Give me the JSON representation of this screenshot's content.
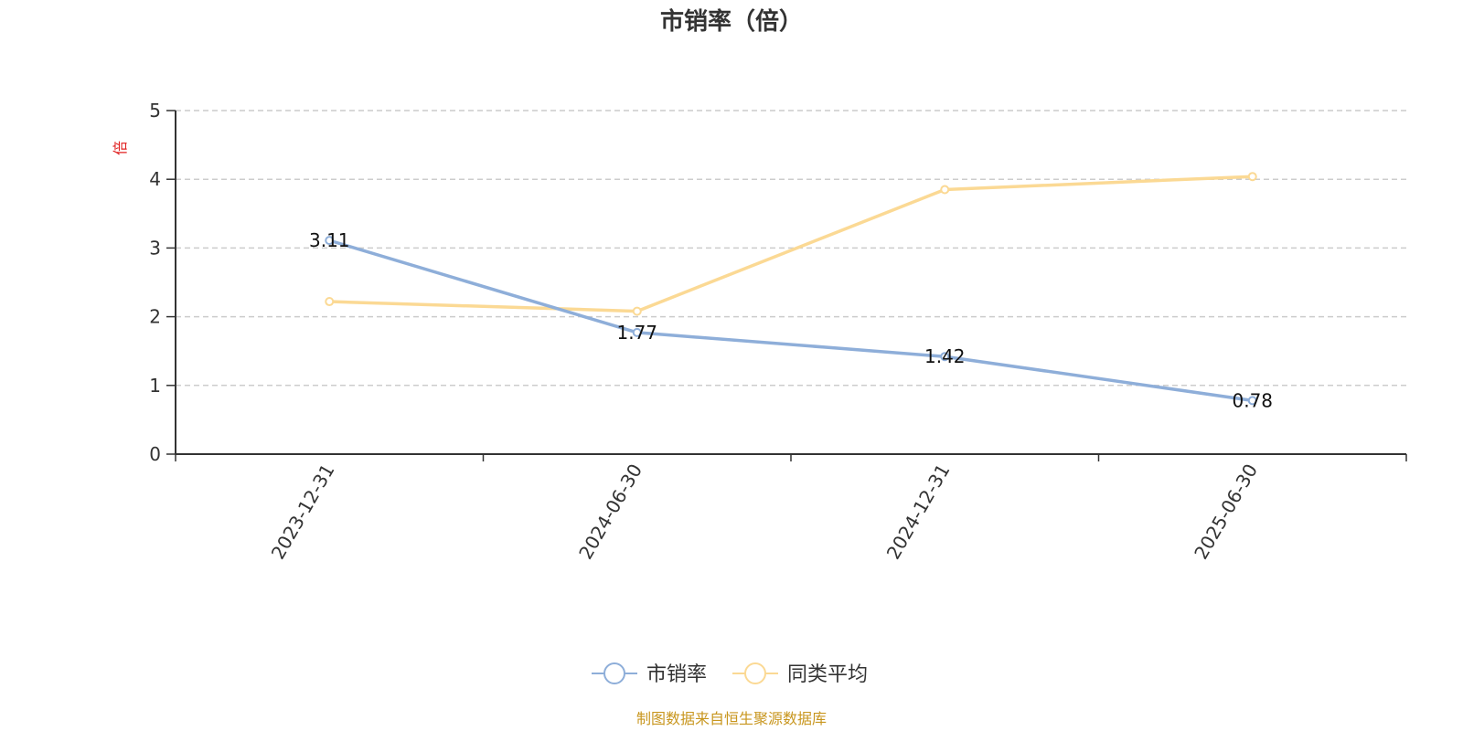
{
  "chart_data": {
    "type": "line",
    "title": "市销率（倍）",
    "ylabel": "倍",
    "xlabel": "",
    "categories": [
      "2023-12-31",
      "2024-06-30",
      "2024-12-31",
      "2025-06-30"
    ],
    "ylim": [
      0,
      5
    ],
    "yticks": [
      0,
      1,
      2,
      3,
      4,
      5
    ],
    "grid": true,
    "legend_position": "bottom",
    "series": [
      {
        "name": "市销率",
        "values": [
          3.11,
          1.77,
          1.42,
          0.78
        ],
        "color": "#8eaed9",
        "data_labels": [
          "3.11",
          "1.77",
          "1.42",
          "0.78"
        ]
      },
      {
        "name": "同类平均",
        "values": [
          2.22,
          2.08,
          3.85,
          4.04
        ],
        "color": "#fbd994"
      }
    ],
    "source_note": "制图数据来自恒生聚源数据库"
  }
}
